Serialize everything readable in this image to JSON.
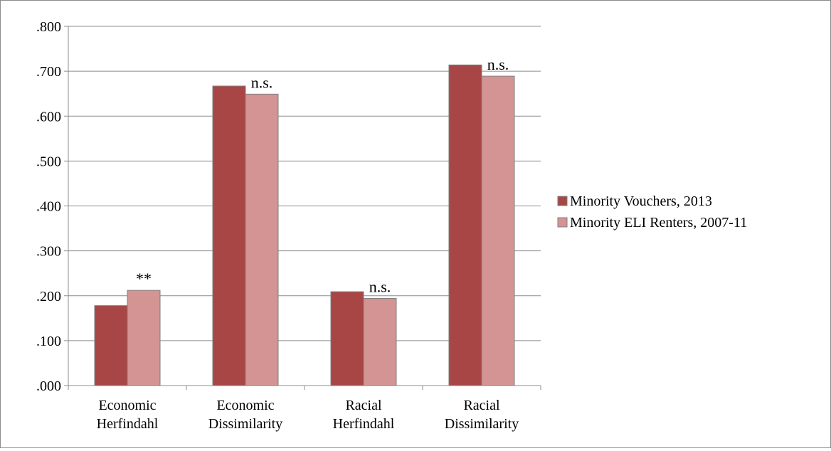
{
  "chart_data": {
    "type": "bar",
    "categories": [
      [
        "Economic",
        "Herfindahl"
      ],
      [
        "Economic",
        "Dissimilarity"
      ],
      [
        "Racial",
        "Herfindahl"
      ],
      [
        "Racial",
        "Dissimilarity"
      ]
    ],
    "series": [
      {
        "name": "Minority Vouchers, 2013",
        "color": "#a84645",
        "values": [
          0.178,
          0.667,
          0.209,
          0.714
        ]
      },
      {
        "name": "Minority ELI Renters, 2007-11",
        "color": "#d39493",
        "values": [
          0.212,
          0.649,
          0.194,
          0.689
        ]
      }
    ],
    "annotations": [
      "**",
      "n.s.",
      "n.s.",
      "n.s."
    ],
    "yticks": [
      ".000",
      ".100",
      ".200",
      ".300",
      ".400",
      ".500",
      ".600",
      ".700",
      ".800"
    ],
    "ylim": [
      0,
      0.8
    ],
    "grid": true,
    "legend": "right",
    "title": "",
    "xlabel": "",
    "ylabel": ""
  }
}
